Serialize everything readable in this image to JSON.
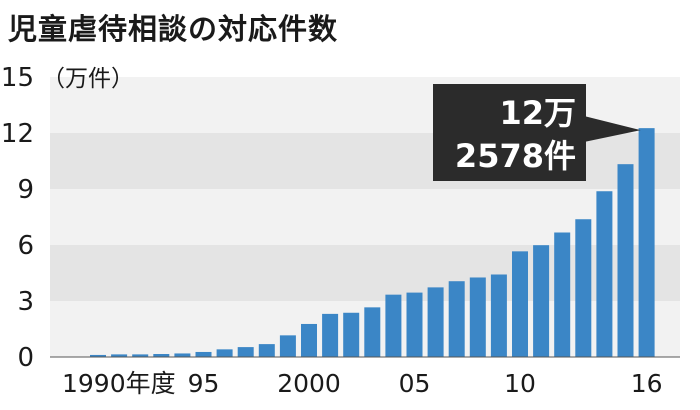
{
  "title": "児童虐待相談の対応件数",
  "colors": {
    "bar": "#3b86c6",
    "band_dark": "#e4e4e4",
    "band_light": "#f2f2f2",
    "callout_bg": "#2b2b2b",
    "callout_text": "#ffffff",
    "text": "#1a1a1a"
  },
  "chart_data": {
    "type": "bar",
    "unit_label": "（万件）",
    "ylim": [
      0,
      15
    ],
    "yticks": [
      0,
      3,
      6,
      9,
      12,
      15
    ],
    "grid": "alternating horizontal bands",
    "x_tick_labels": [
      {
        "year": 1990,
        "label": "1990年度"
      },
      {
        "year": 1995,
        "label": "95"
      },
      {
        "year": 2000,
        "label": "2000"
      },
      {
        "year": 2005,
        "label": "05"
      },
      {
        "year": 2010,
        "label": "10"
      },
      {
        "year": 2016,
        "label": "16"
      }
    ],
    "categories": [
      1990,
      1991,
      1992,
      1993,
      1994,
      1995,
      1996,
      1997,
      1998,
      1999,
      2000,
      2001,
      2002,
      2003,
      2004,
      2005,
      2006,
      2007,
      2008,
      2009,
      2010,
      2011,
      2012,
      2013,
      2014,
      2015,
      2016
    ],
    "values": [
      0.11,
      0.14,
      0.14,
      0.16,
      0.19,
      0.27,
      0.41,
      0.53,
      0.69,
      1.16,
      1.77,
      2.31,
      2.37,
      2.66,
      3.34,
      3.45,
      3.73,
      4.06,
      4.26,
      4.42,
      5.66,
      5.99,
      6.67,
      7.38,
      8.88,
      10.33,
      12.26
    ],
    "annotation": {
      "year": 2016,
      "line1": "12万",
      "line2": "2578件"
    }
  }
}
